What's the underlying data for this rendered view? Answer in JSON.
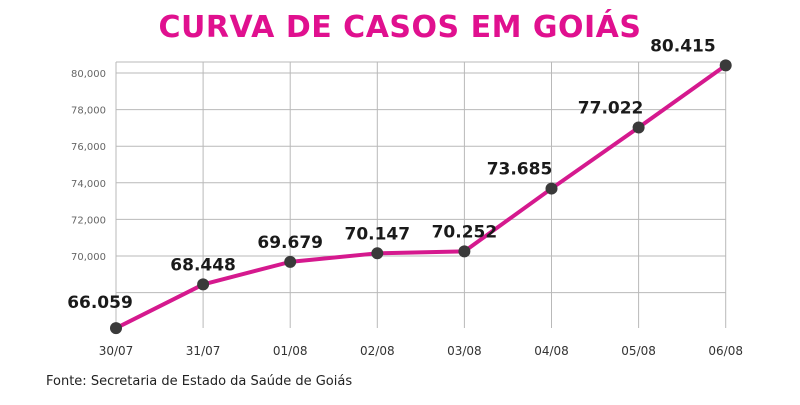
{
  "title": "CURVA DE CASOS EM GOIÁS",
  "source": "Fonte: Secretaria de Estado da Saúde de Goiás",
  "colors": {
    "title": "#e0108f",
    "line": "#d5198e",
    "point": "#3a3a3a"
  },
  "chart_data": {
    "type": "line",
    "categories": [
      "30/07",
      "31/07",
      "01/08",
      "02/08",
      "03/08",
      "04/08",
      "05/08",
      "06/08"
    ],
    "values": [
      66059,
      68448,
      69679,
      70147,
      70252,
      73685,
      77022,
      80415
    ],
    "data_labels": [
      "66.059",
      "68.448",
      "69.679",
      "70.147",
      "70.252",
      "73.685",
      "77.022",
      "80.415"
    ],
    "yticks": [
      70000,
      72000,
      74000,
      76000,
      78000,
      80000
    ],
    "ytick_labels": [
      "70,000",
      "72,000",
      "74,000",
      "76,000",
      "78,000",
      "80,000"
    ],
    "ylim": [
      66059,
      80415
    ],
    "grid": true
  }
}
